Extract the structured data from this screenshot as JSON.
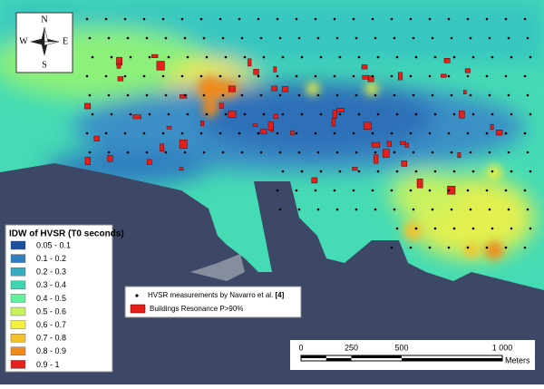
{
  "compass": {
    "north": "N",
    "south": "S",
    "east": "E",
    "west": "W"
  },
  "legend": {
    "title": "IDW of HVSR (T0 seconds)",
    "items": [
      {
        "label": "0.05 - 0.1",
        "color": "#1c4f9e"
      },
      {
        "label": "0.1 - 0.2",
        "color": "#2f7fbf"
      },
      {
        "label": "0.2 - 0.3",
        "color": "#35acc2"
      },
      {
        "label": "0.3 - 0.4",
        "color": "#3ed6b2"
      },
      {
        "label": "0.4 - 0.5",
        "color": "#63f09c"
      },
      {
        "label": "0.5 - 0.6",
        "color": "#c9f25e"
      },
      {
        "label": "0.6 - 0.7",
        "color": "#f4f23e"
      },
      {
        "label": "0.7 - 0.8",
        "color": "#f5c22e"
      },
      {
        "label": "0.8 - 0.9",
        "color": "#ef8a1f"
      },
      {
        "label": "0.9 - 1",
        "color": "#e3201c"
      }
    ]
  },
  "points_legend": {
    "measurements": "HVSR measurements by Navarro et al.",
    "reference": "[4]",
    "buildings": "Buildings Resonance P>90%"
  },
  "scale_bar": {
    "labels": [
      "0",
      "250",
      "500",
      "1 000"
    ],
    "unit": "Meters"
  }
}
